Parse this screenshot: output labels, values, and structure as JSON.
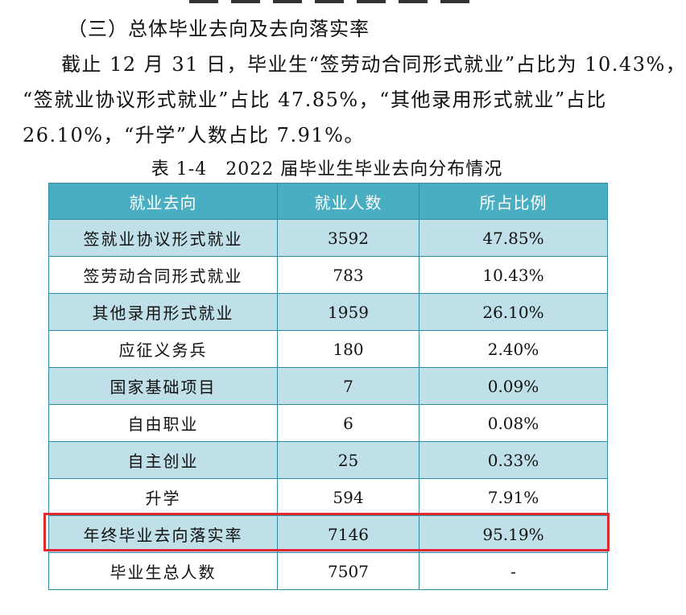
{
  "section": {
    "heading": "（三）总体毕业去向及去向落实率",
    "paragraph_lines": [
      "截止 12 月 31 日，毕业生“签劳动合同形式就业”占比为 10.43%，",
      "“签就业协议形式就业”占比 47.85%，“其他录用形式就业”占比",
      "26.10%，“升学”人数占比 7.91%。"
    ]
  },
  "table": {
    "caption": "表 1-4　2022 届毕业生毕业去向分布情况",
    "headers": [
      "就业去向",
      "就业人数",
      "所占比例"
    ],
    "rows": [
      [
        "签就业协议形式就业",
        "3592",
        "47.85%"
      ],
      [
        "签劳动合同形式就业",
        "783",
        "10.43%"
      ],
      [
        "其他录用形式就业",
        "1959",
        "26.10%"
      ],
      [
        "应征义务兵",
        "180",
        "2.40%"
      ],
      [
        "国家基础项目",
        "7",
        "0.09%"
      ],
      [
        "自由职业",
        "6",
        "0.08%"
      ],
      [
        "自主创业",
        "25",
        "0.33%"
      ],
      [
        "升学",
        "594",
        "7.91%"
      ],
      [
        "年终毕业去向落实率",
        "7146",
        "95.19%"
      ],
      [
        "毕业生总人数",
        "7507",
        "-"
      ]
    ],
    "highlighted_row_index": 8
  },
  "colors": {
    "header_bg": "#4aaec2",
    "stripe_bg": "#bfe0e8",
    "border": "#2f8aa3",
    "highlight_border": "#e02a2f"
  }
}
